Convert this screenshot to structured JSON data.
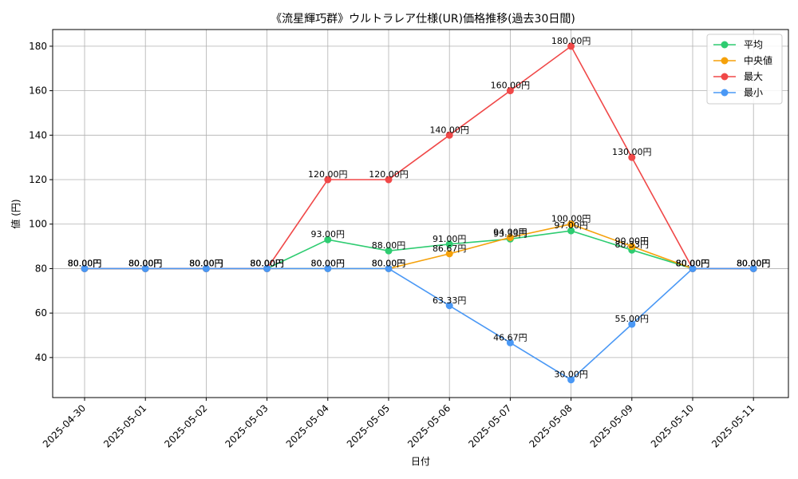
{
  "chart_data": {
    "type": "line",
    "title": "《流星輝巧群》ウルトラレア仕様(UR)価格推移(過去30日間)",
    "xlabel": "日付",
    "ylabel": "値 (円)",
    "categories": [
      "2025-04-30",
      "2025-05-01",
      "2025-05-02",
      "2025-05-03",
      "2025-05-04",
      "2025-05-05",
      "2025-05-06",
      "2025-05-07",
      "2025-05-08",
      "2025-05-09",
      "2025-05-10",
      "2025-05-11"
    ],
    "ylim": [
      22,
      187.5
    ],
    "yticks": [
      40,
      60,
      80,
      100,
      120,
      140,
      160,
      180
    ],
    "grid": true,
    "legend_position": "top-right",
    "value_suffix": "円",
    "series": [
      {
        "name": "平均",
        "color": "#2ecc71",
        "values": [
          80,
          80,
          80,
          80,
          93,
          88,
          91,
          93.33,
          97,
          88.33,
          80,
          80
        ]
      },
      {
        "name": "中央値",
        "color": "#f5a10a",
        "values": [
          80,
          80,
          80,
          80,
          80,
          80,
          86.67,
          94,
          100,
          90,
          80,
          80
        ]
      },
      {
        "name": "最大",
        "color": "#f04848",
        "values": [
          80,
          80,
          80,
          80,
          120,
          120,
          140,
          160,
          180,
          130,
          80,
          80
        ]
      },
      {
        "name": "最小",
        "color": "#4a98f5",
        "values": [
          80,
          80,
          80,
          80,
          80,
          80,
          63.33,
          46.67,
          30,
          55,
          80,
          80
        ]
      }
    ]
  }
}
